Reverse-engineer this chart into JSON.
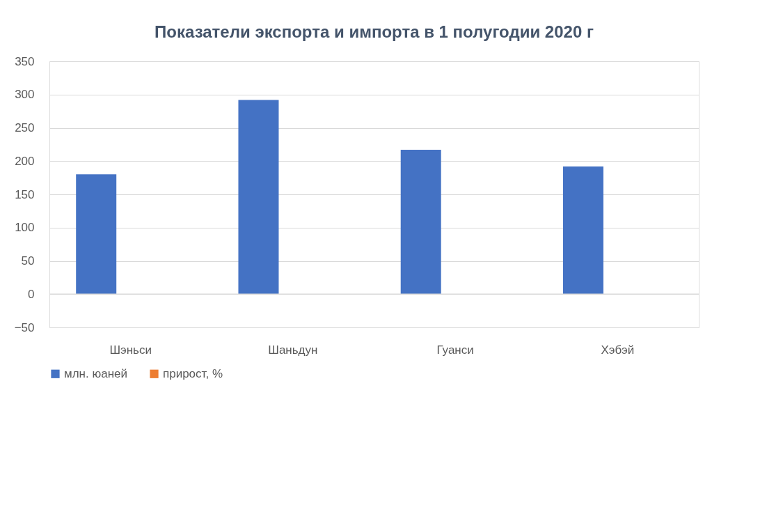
{
  "chart_data": {
    "type": "bar",
    "title": "Показатели экспорта и импорта в 1 полугодии 2020 г",
    "categories": [
      "Шэньси",
      "Шаньдун",
      "Гуанси",
      "Хэбэй"
    ],
    "series": [
      {
        "name": "млн. юаней",
        "color": "#4472c4",
        "values": [
          180,
          292,
          217,
          192
        ]
      },
      {
        "name": "прирост, %",
        "color": "#ed7d31",
        "values": [
          null,
          null,
          null,
          null
        ]
      }
    ],
    "ylim": [
      -50,
      350
    ],
    "yticks": [
      -50,
      0,
      50,
      100,
      150,
      200,
      250,
      300,
      350
    ],
    "grid": "y",
    "legend": "bottom"
  }
}
